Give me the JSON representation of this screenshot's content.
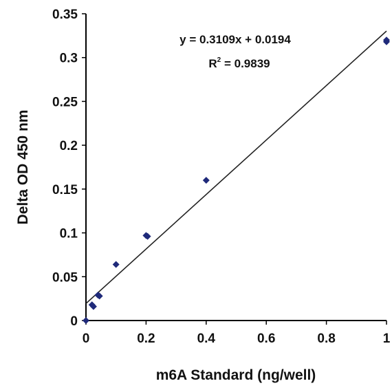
{
  "chart_data": {
    "type": "scatter",
    "xlabel": "m6A Standard (ng/well)",
    "ylabel": "Delta OD 450 nm",
    "xlim": [
      0,
      1
    ],
    "ylim": [
      0,
      0.35
    ],
    "x_ticks": [
      "0",
      "0.2",
      "0.4",
      "0.6",
      "0.8",
      "1"
    ],
    "x_tick_values": [
      0,
      0.2,
      0.4,
      0.6,
      0.8,
      1
    ],
    "y_ticks": [
      "0",
      "0.05",
      "0.1",
      "0.15",
      "0.2",
      "0.25",
      "0.3",
      "0.35"
    ],
    "y_tick_values": [
      0,
      0.05,
      0.1,
      0.15,
      0.2,
      0.25,
      0.3,
      0.35
    ],
    "grid": false,
    "series": [
      {
        "color": "#1f2a7a",
        "marker": "diamond",
        "points": [
          {
            "x": 0,
            "y": 0
          },
          {
            "x": 0.02,
            "y": 0.018
          },
          {
            "x": 0.025,
            "y": 0.016
          },
          {
            "x": 0.04,
            "y": 0.029
          },
          {
            "x": 0.045,
            "y": 0.028
          },
          {
            "x": 0.1,
            "y": 0.064
          },
          {
            "x": 0.2,
            "y": 0.097
          },
          {
            "x": 0.205,
            "y": 0.096
          },
          {
            "x": 0.4,
            "y": 0.16
          },
          {
            "x": 1,
            "y": 0.32
          },
          {
            "x": 1,
            "y": 0.318
          }
        ]
      }
    ],
    "trendline": {
      "slope": 0.3109,
      "intercept": 0.0194,
      "x_range": [
        0,
        1
      ],
      "color": "#222222"
    },
    "annotations": {
      "equation": "y = 0.3109x + 0.0194",
      "r2_base": "R",
      "r2_exp": "2",
      "r2_value": " = 0.9839"
    }
  }
}
